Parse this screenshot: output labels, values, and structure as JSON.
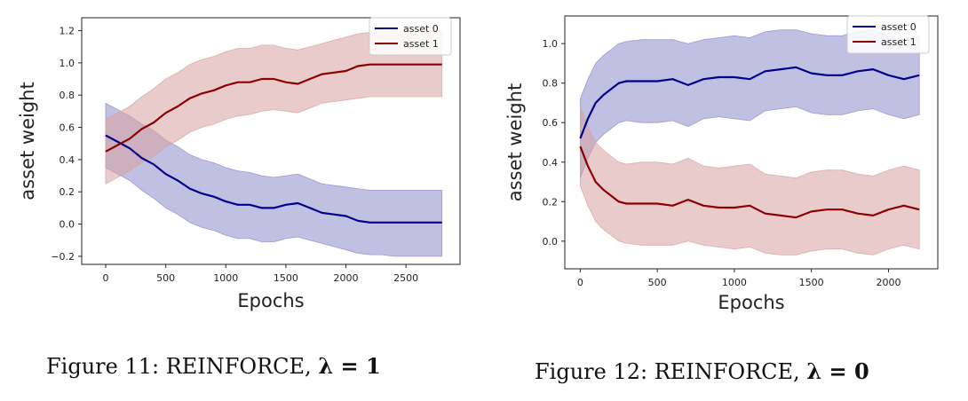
{
  "figures": [
    {
      "caption_prefix": "Figure 11:  REINFORCE, ",
      "caption_math": "λ = 1"
    },
    {
      "caption_prefix": "Figure 12:  REINFORCE, ",
      "caption_math": "λ = 0"
    }
  ],
  "chart_data": [
    {
      "type": "line",
      "xlabel": "Epochs",
      "ylabel": "asset weight",
      "xlim": [
        -200,
        2950
      ],
      "ylim": [
        -0.25,
        1.28
      ],
      "xticks": [
        0,
        500,
        1000,
        1500,
        2000,
        2500
      ],
      "yticks": [
        -0.2,
        0.0,
        0.2,
        0.4,
        0.6,
        0.8,
        1.0,
        1.2
      ],
      "ytick_labels": [
        "−0.2",
        "0.0",
        "0.2",
        "0.4",
        "0.6",
        "0.8",
        "1.0",
        "1.2"
      ],
      "grid": false,
      "legend_position": "top-right",
      "series": [
        {
          "name": "asset 0",
          "color": "#00008b",
          "band_color": "#8c8ccc",
          "x": [
            0,
            100,
            200,
            300,
            400,
            500,
            600,
            700,
            800,
            900,
            1000,
            1100,
            1200,
            1300,
            1400,
            1500,
            1600,
            1700,
            1800,
            1900,
            2000,
            2100,
            2200,
            2300,
            2400,
            2500,
            2600,
            2700,
            2800
          ],
          "mean": [
            0.55,
            0.51,
            0.47,
            0.41,
            0.37,
            0.31,
            0.27,
            0.22,
            0.19,
            0.17,
            0.14,
            0.12,
            0.12,
            0.1,
            0.1,
            0.12,
            0.13,
            0.1,
            0.07,
            0.06,
            0.05,
            0.02,
            0.01,
            0.01,
            0.01,
            0.01,
            0.01,
            0.01,
            0.01
          ],
          "upper": [
            0.75,
            0.71,
            0.67,
            0.62,
            0.58,
            0.52,
            0.48,
            0.43,
            0.4,
            0.38,
            0.35,
            0.33,
            0.32,
            0.3,
            0.29,
            0.3,
            0.31,
            0.28,
            0.25,
            0.24,
            0.23,
            0.22,
            0.21,
            0.21,
            0.21,
            0.21,
            0.21,
            0.21,
            0.21
          ],
          "lower": [
            0.35,
            0.31,
            0.27,
            0.21,
            0.16,
            0.1,
            0.06,
            0.01,
            -0.02,
            -0.04,
            -0.07,
            -0.09,
            -0.09,
            -0.11,
            -0.11,
            -0.09,
            -0.08,
            -0.1,
            -0.12,
            -0.14,
            -0.16,
            -0.18,
            -0.19,
            -0.19,
            -0.2,
            -0.2,
            -0.2,
            -0.2,
            -0.2
          ]
        },
        {
          "name": "asset 1",
          "color": "#8b0000",
          "band_color": "#d8a0a0",
          "x": [
            0,
            100,
            200,
            300,
            400,
            500,
            600,
            700,
            800,
            900,
            1000,
            1100,
            1200,
            1300,
            1400,
            1500,
            1600,
            1700,
            1800,
            1900,
            2000,
            2100,
            2200,
            2300,
            2400,
            2500,
            2600,
            2700,
            2800
          ],
          "mean": [
            0.45,
            0.49,
            0.53,
            0.59,
            0.63,
            0.69,
            0.73,
            0.78,
            0.81,
            0.83,
            0.86,
            0.88,
            0.88,
            0.9,
            0.9,
            0.88,
            0.87,
            0.9,
            0.93,
            0.94,
            0.95,
            0.98,
            0.99,
            0.99,
            0.99,
            0.99,
            0.99,
            0.99,
            0.99
          ],
          "upper": [
            0.65,
            0.69,
            0.73,
            0.79,
            0.84,
            0.9,
            0.94,
            0.99,
            1.02,
            1.04,
            1.07,
            1.09,
            1.09,
            1.11,
            1.11,
            1.09,
            1.08,
            1.1,
            1.12,
            1.14,
            1.16,
            1.18,
            1.19,
            1.19,
            1.2,
            1.2,
            1.2,
            1.2,
            1.2
          ],
          "lower": [
            0.25,
            0.29,
            0.33,
            0.38,
            0.42,
            0.48,
            0.52,
            0.57,
            0.6,
            0.62,
            0.65,
            0.67,
            0.68,
            0.7,
            0.71,
            0.7,
            0.69,
            0.72,
            0.75,
            0.76,
            0.77,
            0.78,
            0.79,
            0.79,
            0.79,
            0.79,
            0.79,
            0.79,
            0.79
          ]
        }
      ]
    },
    {
      "type": "line",
      "xlabel": "Epochs",
      "ylabel": "asset weight",
      "xlim": [
        -100,
        2320
      ],
      "ylim": [
        -0.14,
        1.14
      ],
      "xticks": [
        0,
        500,
        1000,
        1500,
        2000
      ],
      "yticks": [
        0.0,
        0.2,
        0.4,
        0.6,
        0.8,
        1.0
      ],
      "ytick_labels": [
        "0.0",
        "0.2",
        "0.4",
        "0.6",
        "0.8",
        "1.0"
      ],
      "grid": false,
      "legend_position": "top-right",
      "series": [
        {
          "name": "asset 0",
          "color": "#00008b",
          "band_color": "#8c8ccc",
          "x": [
            0,
            50,
            100,
            150,
            200,
            250,
            300,
            400,
            500,
            600,
            700,
            800,
            900,
            1000,
            1100,
            1200,
            1300,
            1400,
            1500,
            1600,
            1700,
            1800,
            1900,
            2000,
            2100,
            2200
          ],
          "mean": [
            0.52,
            0.62,
            0.7,
            0.74,
            0.77,
            0.8,
            0.81,
            0.81,
            0.81,
            0.82,
            0.79,
            0.82,
            0.83,
            0.83,
            0.82,
            0.86,
            0.87,
            0.88,
            0.85,
            0.84,
            0.84,
            0.86,
            0.87,
            0.84,
            0.82,
            0.84
          ],
          "upper": [
            0.72,
            0.82,
            0.9,
            0.94,
            0.97,
            1.0,
            1.01,
            1.02,
            1.02,
            1.02,
            1.0,
            1.02,
            1.03,
            1.04,
            1.03,
            1.06,
            1.07,
            1.07,
            1.05,
            1.04,
            1.04,
            1.06,
            1.07,
            1.04,
            1.02,
            1.04
          ],
          "lower": [
            0.32,
            0.42,
            0.5,
            0.54,
            0.57,
            0.6,
            0.61,
            0.6,
            0.6,
            0.61,
            0.58,
            0.62,
            0.63,
            0.62,
            0.61,
            0.66,
            0.67,
            0.68,
            0.65,
            0.64,
            0.64,
            0.66,
            0.67,
            0.64,
            0.62,
            0.64
          ]
        },
        {
          "name": "asset 1",
          "color": "#8b0000",
          "band_color": "#d8a0a0",
          "x": [
            0,
            50,
            100,
            150,
            200,
            250,
            300,
            400,
            500,
            600,
            700,
            800,
            900,
            1000,
            1100,
            1200,
            1300,
            1400,
            1500,
            1600,
            1700,
            1800,
            1900,
            2000,
            2100,
            2200
          ],
          "mean": [
            0.48,
            0.38,
            0.3,
            0.26,
            0.23,
            0.2,
            0.19,
            0.19,
            0.19,
            0.18,
            0.21,
            0.18,
            0.17,
            0.17,
            0.18,
            0.14,
            0.13,
            0.12,
            0.15,
            0.16,
            0.16,
            0.14,
            0.13,
            0.16,
            0.18,
            0.16
          ],
          "upper": [
            0.68,
            0.58,
            0.5,
            0.46,
            0.43,
            0.4,
            0.39,
            0.4,
            0.4,
            0.39,
            0.42,
            0.38,
            0.37,
            0.38,
            0.39,
            0.34,
            0.33,
            0.32,
            0.35,
            0.36,
            0.36,
            0.34,
            0.33,
            0.36,
            0.38,
            0.36
          ],
          "lower": [
            0.28,
            0.18,
            0.1,
            0.06,
            0.03,
            0.0,
            -0.01,
            -0.02,
            -0.02,
            -0.02,
            0.0,
            -0.02,
            -0.03,
            -0.04,
            -0.03,
            -0.06,
            -0.07,
            -0.07,
            -0.05,
            -0.04,
            -0.04,
            -0.06,
            -0.07,
            -0.04,
            -0.02,
            -0.04
          ]
        }
      ]
    }
  ]
}
